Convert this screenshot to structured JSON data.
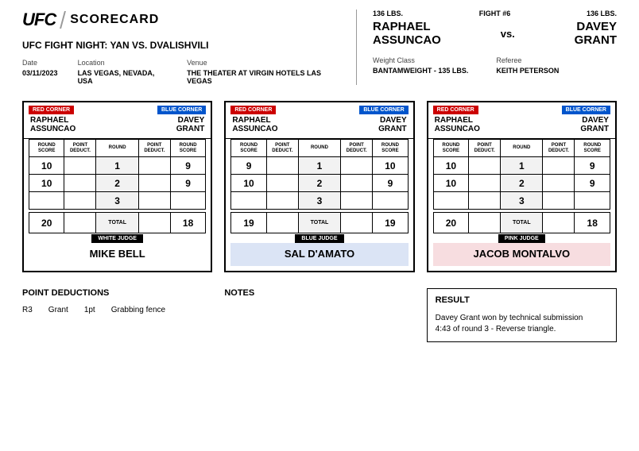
{
  "logo": "UFC",
  "title": "SCORECARD",
  "event": "UFC FIGHT NIGHT: YAN VS. DVALISHVILI",
  "date_label": "Date",
  "date": "03/11/2023",
  "location_label": "Location",
  "location": "LAS VEGAS, NEVADA, USA",
  "venue_label": "Venue",
  "venue": "THE THEATER AT VIRGIN HOTELS LAS VEGAS",
  "weight_red": "136 LBS.",
  "fight_num": "FIGHT #6",
  "weight_blue": "136 LBS.",
  "fighter_red_first": "RAPHAEL",
  "fighter_red_last": "ASSUNCAO",
  "vs": "vs.",
  "fighter_blue_first": "DAVEY",
  "fighter_blue_last": "GRANT",
  "weightclass_label": "Weight Class",
  "weightclass": "BANTAMWEIGHT - 135 LBS.",
  "referee_label": "Referee",
  "referee": "KEITH PETERSON",
  "red_corner": "RED CORNER",
  "blue_corner": "BLUE CORNER",
  "hdr_roundscore": "ROUND SCORE",
  "hdr_pointdeduct": "POINT DEDUCT.",
  "hdr_round": "ROUND",
  "total_label": "TOTAL",
  "cards": [
    {
      "judge_type": "WHITE JUDGE",
      "judge_name": "MIKE BELL",
      "judge_bg": "#ffffff",
      "r1": {
        "rs": "10",
        "rd": "",
        "bd": "",
        "bs": "9"
      },
      "r2": {
        "rs": "10",
        "rd": "",
        "bd": "",
        "bs": "9"
      },
      "r3": {
        "rs": "",
        "rd": "",
        "bd": "",
        "bs": ""
      },
      "total_red": "20",
      "total_blue": "18"
    },
    {
      "judge_type": "BLUE JUDGE",
      "judge_name": "SAL D'AMATO",
      "judge_bg": "#dbe4f5",
      "r1": {
        "rs": "9",
        "rd": "",
        "bd": "",
        "bs": "10"
      },
      "r2": {
        "rs": "10",
        "rd": "",
        "bd": "",
        "bs": "9"
      },
      "r3": {
        "rs": "",
        "rd": "",
        "bd": "",
        "bs": ""
      },
      "total_red": "19",
      "total_blue": "19"
    },
    {
      "judge_type": "PINK JUDGE",
      "judge_name": "JACOB MONTALVO",
      "judge_bg": "#f7dde0",
      "r1": {
        "rs": "10",
        "rd": "",
        "bd": "",
        "bs": "9"
      },
      "r2": {
        "rs": "10",
        "rd": "",
        "bd": "",
        "bs": "9"
      },
      "r3": {
        "rs": "",
        "rd": "",
        "bd": "",
        "bs": ""
      },
      "total_red": "20",
      "total_blue": "18"
    }
  ],
  "deductions_title": "POINT DEDUCTIONS",
  "deduction": {
    "round": "R3",
    "fighter": "Grant",
    "pts": "1pt",
    "reason": "Grabbing fence"
  },
  "notes_title": "NOTES",
  "result_title": "RESULT",
  "result_line1": "Davey Grant won by technical submission",
  "result_line2": "4:43 of round 3 - Reverse triangle."
}
